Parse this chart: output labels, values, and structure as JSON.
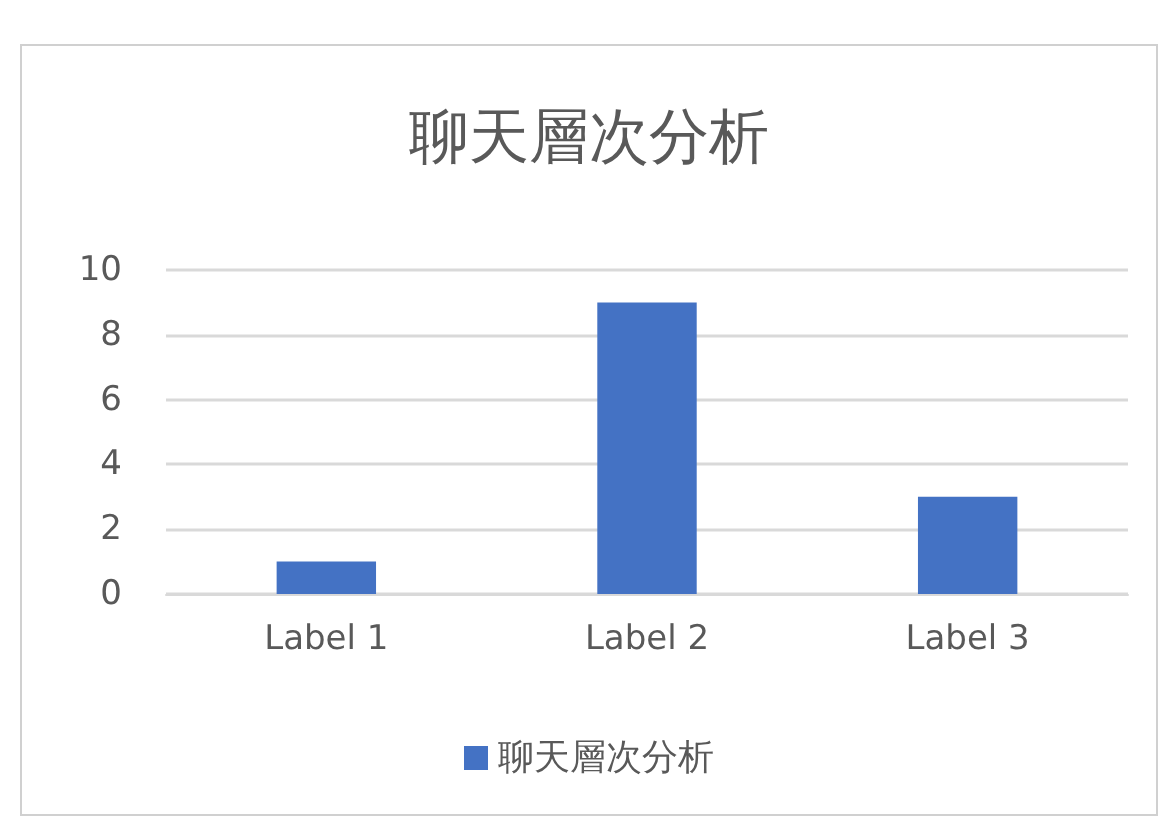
{
  "chart_data": {
    "type": "bar",
    "title": "聊天層次分析",
    "categories": [
      "Label 1",
      "Label 2",
      "Label 3"
    ],
    "series": [
      {
        "name": "聊天層次分析",
        "color": "#4472c4",
        "values": [
          1,
          9,
          3
        ]
      }
    ],
    "ylim": [
      0,
      10
    ],
    "yticks": [
      0,
      2,
      4,
      6,
      8,
      10
    ],
    "grid": "y",
    "legend": "bottom"
  }
}
